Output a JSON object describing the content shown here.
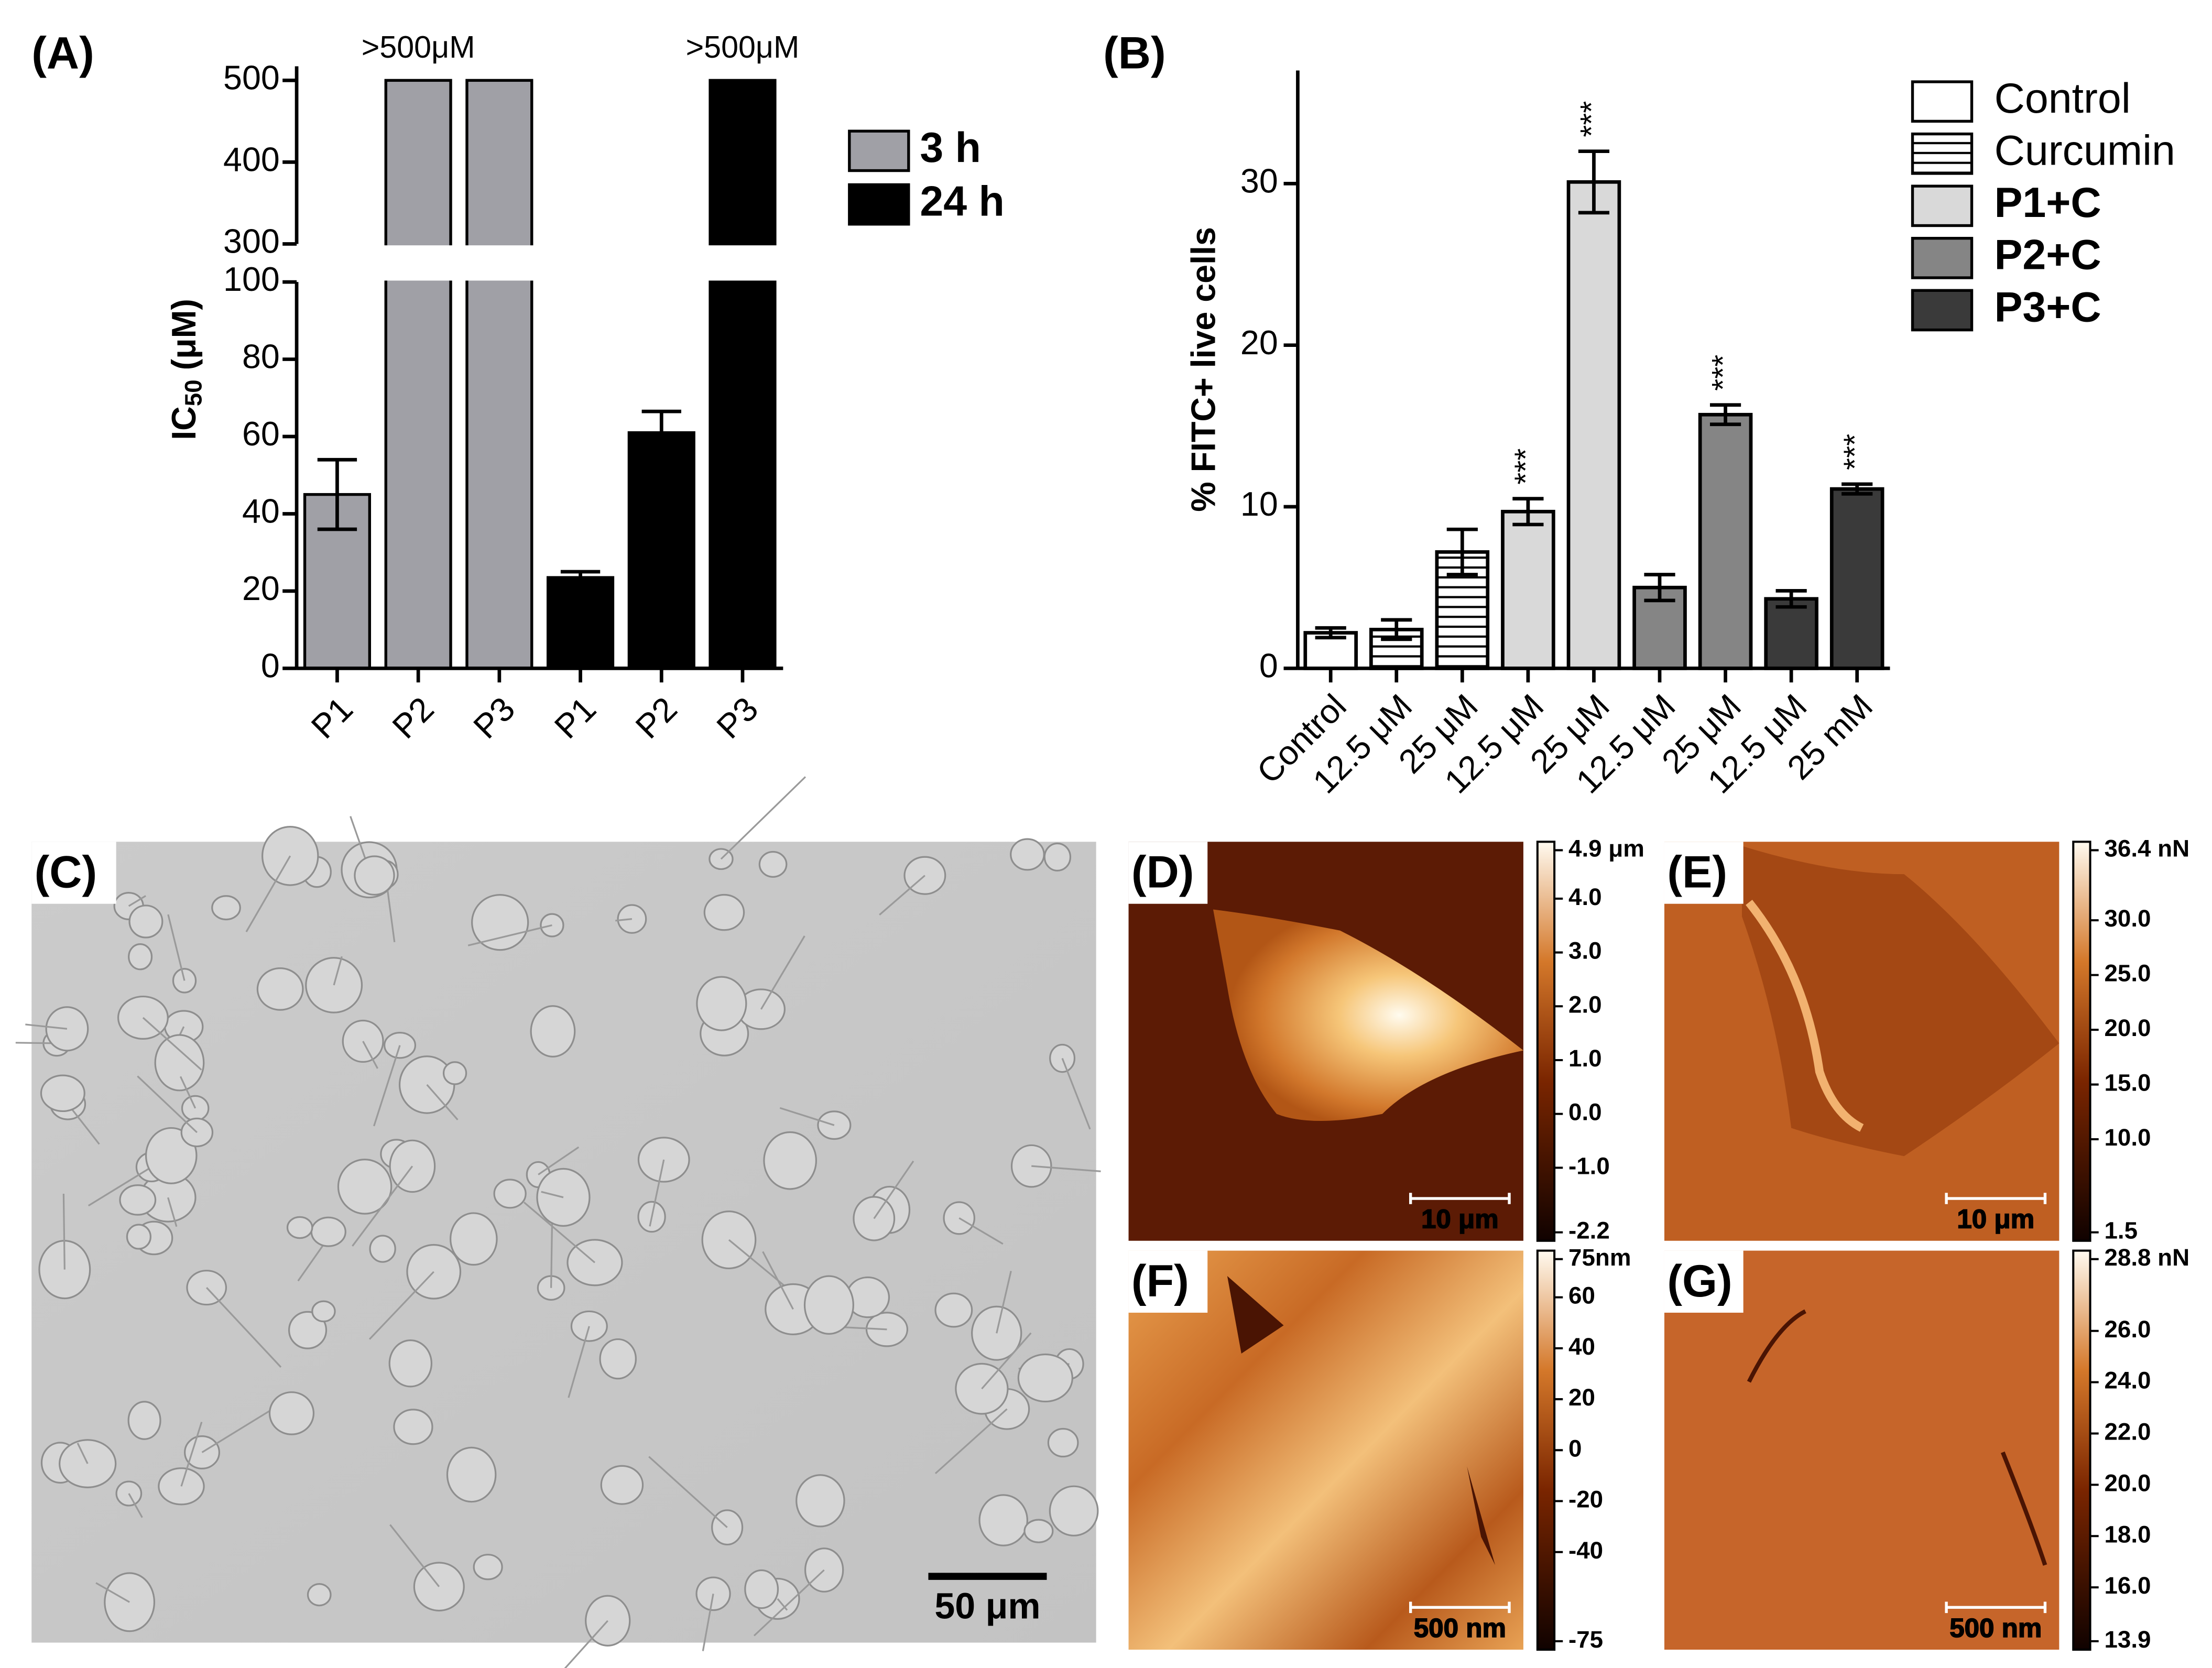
{
  "chart_data": [
    {
      "type": "bar",
      "title": "(A)",
      "ylabel_parts": [
        "IC",
        "50",
        " (μM)"
      ],
      "categories": [
        "P1",
        "P2",
        "P3",
        "P1",
        "P2",
        "P3"
      ],
      "series": [
        {
          "name": "3 h",
          "color": "#a0a0a6",
          "values": [
            45,
            500,
            500,
            null,
            null,
            null
          ],
          "errors": [
            9,
            null,
            null,
            null,
            null,
            null
          ],
          "value_labels": [
            null,
            ">500μM",
            null,
            null,
            null,
            null
          ]
        },
        {
          "name": "24 h",
          "color": "#000000",
          "values": [
            null,
            null,
            null,
            23.5,
            61,
            500
          ],
          "errors": [
            null,
            null,
            null,
            1.5,
            5.5,
            null
          ],
          "value_labels": [
            null,
            null,
            null,
            null,
            null,
            ">500μM"
          ]
        }
      ],
      "ylim": [
        0,
        500
      ],
      "ylim_break": [
        100,
        300
      ],
      "yticks": [
        0,
        20,
        40,
        60,
        80,
        100,
        300,
        400,
        500
      ]
    },
    {
      "type": "bar",
      "title": "(B)",
      "ylabel": "% FITC+ live cells",
      "categories": [
        "Control",
        "12.5 μM",
        "25 μM",
        "12.5 μM",
        "25 μM",
        "12.5 μM",
        "25 μM",
        "12.5 μM",
        "25 mM"
      ],
      "series": [
        {
          "name": "Control",
          "color": "#ffffff",
          "values": [
            2.2,
            null,
            null,
            null,
            null,
            null,
            null,
            null,
            null
          ],
          "errors": [
            0.3,
            null,
            null,
            null,
            null,
            null,
            null,
            null,
            null
          ]
        },
        {
          "name": "Curcumin",
          "color": "#ffffff",
          "hatch": true,
          "values": [
            null,
            2.4,
            7.2,
            null,
            null,
            null,
            null,
            null,
            null
          ],
          "errors": [
            null,
            0.6,
            1.4,
            null,
            null,
            null,
            null,
            null,
            null
          ]
        },
        {
          "name": "P1+C",
          "color": "#d9d9d9",
          "values": [
            null,
            null,
            null,
            9.7,
            30.1,
            null,
            null,
            null,
            null
          ],
          "errors": [
            null,
            null,
            null,
            0.8,
            1.9,
            null,
            null,
            null,
            null
          ]
        },
        {
          "name": "P2+C",
          "color": "#858585",
          "values": [
            null,
            null,
            null,
            null,
            null,
            5.0,
            15.7,
            null,
            null
          ],
          "errors": [
            null,
            null,
            null,
            null,
            null,
            0.8,
            0.6,
            null,
            null
          ]
        },
        {
          "name": "P3+C",
          "color": "#3a3a3a",
          "values": [
            null,
            null,
            null,
            null,
            null,
            null,
            null,
            4.3,
            11.1
          ],
          "errors": [
            null,
            null,
            null,
            null,
            null,
            null,
            null,
            0.5,
            0.3
          ]
        }
      ],
      "significance": [
        null,
        null,
        null,
        "***",
        "***",
        null,
        "***",
        null,
        "***"
      ],
      "ylim": [
        0,
        37
      ],
      "yticks": [
        0,
        10,
        20,
        30
      ]
    }
  ],
  "images": [
    {
      "label": "(C)",
      "scale_bar": "50 μm"
    },
    {
      "label": "(D)",
      "scale_bar": "10 μm",
      "colorbar": {
        "lim": [
          -2.2,
          4.9
        ],
        "ticks": [
          {
            "value": 4.9,
            "label": "4.9 μm"
          },
          {
            "value": 4.0,
            "label": "4.0"
          },
          {
            "value": 3.0,
            "label": "3.0"
          },
          {
            "value": 2.0,
            "label": "2.0"
          },
          {
            "value": 1.0,
            "label": "1.0"
          },
          {
            "value": 0.0,
            "label": "0.0"
          },
          {
            "value": -1.0,
            "label": "-1.0"
          },
          -2.2
        ]
      }
    },
    {
      "label": "(E)",
      "scale_bar": "10 μm",
      "colorbar": {
        "lim": [
          1.5,
          36.4
        ],
        "ticks": [
          {
            "value": 36.4,
            "label": "36.4 nN"
          },
          {
            "value": 30.0,
            "label": "30.0"
          },
          {
            "value": 25.0,
            "label": "25.0"
          },
          {
            "value": 20.0,
            "label": "20.0"
          },
          {
            "value": 15.0,
            "label": "15.0"
          },
          {
            "value": 10.0,
            "label": "10.0"
          },
          1.5
        ]
      }
    },
    {
      "label": "(F)",
      "scale_bar": "500 nm",
      "colorbar": {
        "lim": [
          -75,
          75
        ],
        "ticks": [
          {
            "value": 75,
            "label": "75nm"
          },
          60,
          40,
          20,
          0,
          -20,
          -40,
          -75
        ]
      }
    },
    {
      "label": "(G)",
      "scale_bar": "500 nm",
      "colorbar": {
        "lim": [
          13.9,
          28.8
        ],
        "ticks": [
          {
            "value": 28.8,
            "label": "28.8 nN"
          },
          {
            "value": 26.0,
            "label": "26.0"
          },
          {
            "value": 24.0,
            "label": "24.0"
          },
          {
            "value": 22.0,
            "label": "22.0"
          },
          {
            "value": 20.0,
            "label": "20.0"
          },
          {
            "value": 18.0,
            "label": "18.0"
          },
          {
            "value": 16.0,
            "label": "16.0"
          },
          13.9
        ]
      }
    }
  ]
}
